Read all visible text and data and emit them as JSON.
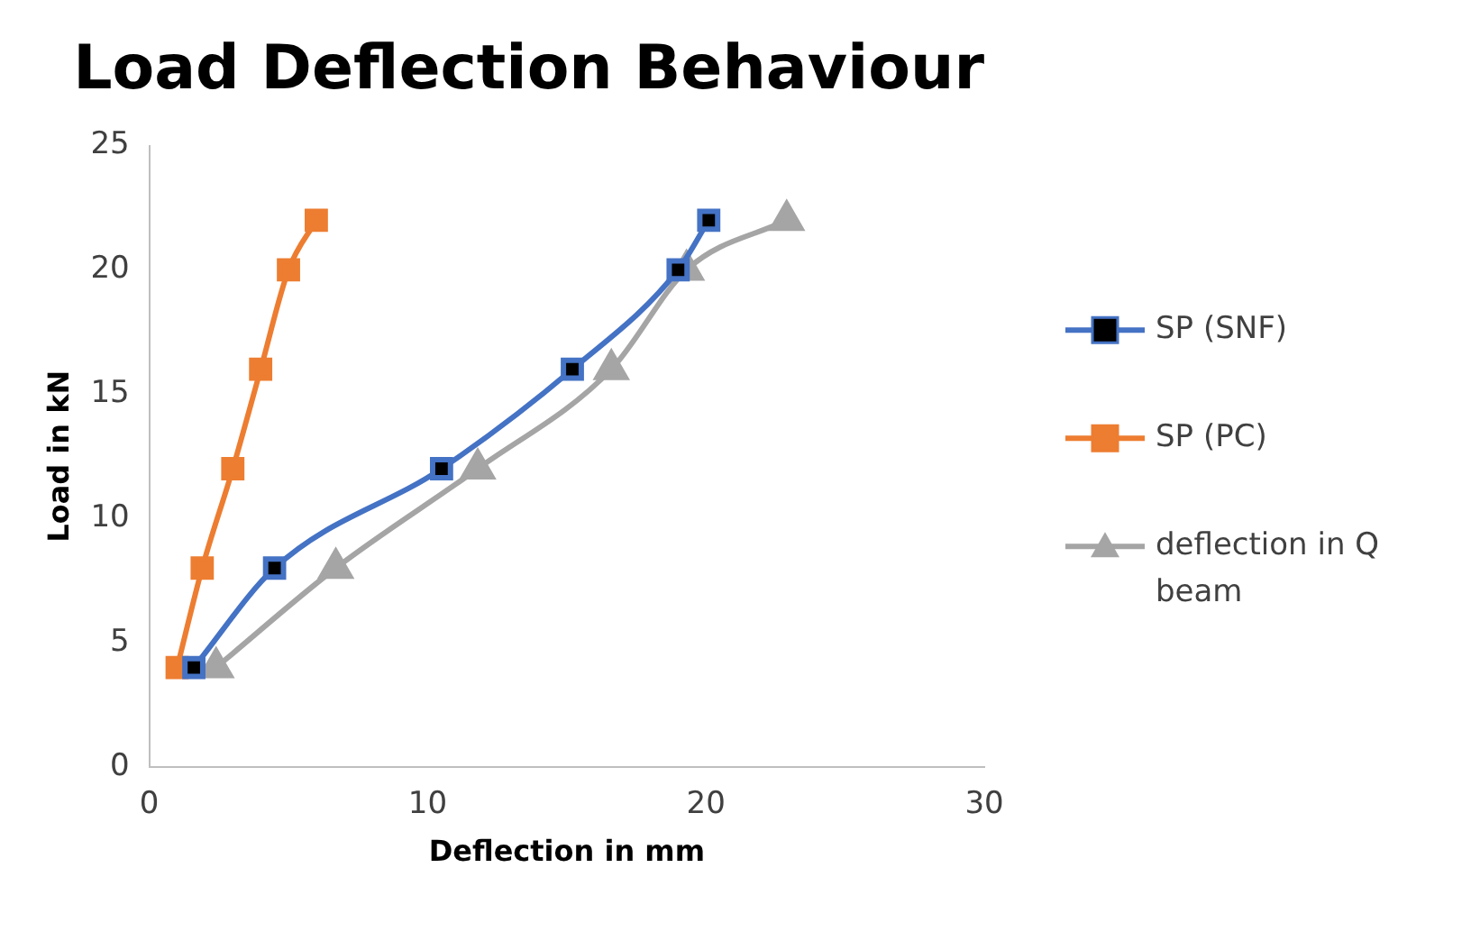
{
  "chart_data": {
    "type": "line",
    "title": "Load Deflection Behaviour",
    "xlabel": "Deflection in mm",
    "ylabel": "Load in kN",
    "xlim": [
      0,
      30
    ],
    "xticks": [
      0,
      10,
      20,
      30
    ],
    "ylim": [
      0,
      25
    ],
    "yticks": [
      0,
      5,
      10,
      15,
      20,
      25
    ],
    "grid": false,
    "legend": "right",
    "series": [
      {
        "name": "SP (SNF)",
        "color": "#4472c4",
        "marker": "square",
        "x": [
          1.6,
          4.5,
          10.5,
          15.2,
          19.0,
          20.1
        ],
        "values": [
          4,
          8,
          12,
          16,
          20,
          22
        ]
      },
      {
        "name": "SP (PC)",
        "color": "#ed7d31",
        "marker": "square",
        "x": [
          1.0,
          1.9,
          3.0,
          4.0,
          5.0,
          6.0
        ],
        "values": [
          4,
          8,
          12,
          16,
          20,
          22
        ]
      },
      {
        "name": "deflection in Q beam",
        "color": "#a5a5a5",
        "marker": "triangle",
        "x": [
          2.4,
          6.7,
          11.8,
          16.6,
          19.3,
          22.9
        ],
        "values": [
          4,
          8,
          12,
          16,
          20,
          22
        ]
      }
    ]
  }
}
